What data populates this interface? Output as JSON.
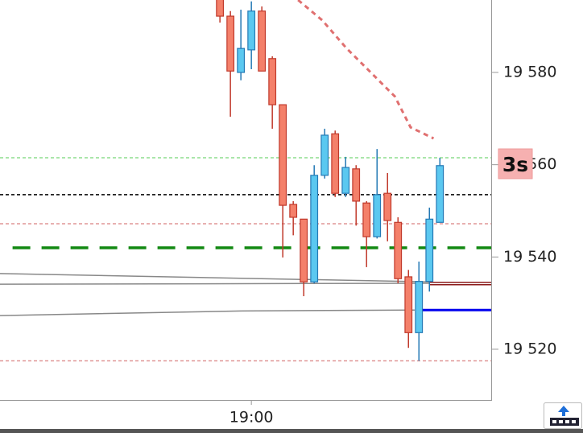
{
  "chart_data": {
    "type": "candlestick",
    "open": [
      19596,
      19592.2,
      19580,
      19584.9,
      19593.3,
      19583.0,
      19573.0,
      19551.4,
      19548.2,
      19534.6,
      19557.7,
      19566.7,
      19553.8,
      19559.1,
      19551.7,
      19544.4,
      19553.8,
      19547.5,
      19535.7,
      19523.6,
      19534.7,
      19547.5
    ],
    "high": [
      19597,
      19593.3,
      19593.6,
      19595.4,
      19594.3,
      19583.5,
      19573.0,
      19552.1,
      19548.2,
      19559.9,
      19567.8,
      19567.4,
      19561.7,
      19559.9,
      19552.1,
      19563.4,
      19558.2,
      19548.6,
      19537.2,
      19539.0,
      19550.7,
      19561.5
    ],
    "low": [
      19590.8,
      19570.4,
      19578.3,
      19580.7,
      19580.3,
      19567.8,
      19539.9,
      19544.7,
      19531.5,
      19534.3,
      19557.0,
      19553.0,
      19553.0,
      19546.8,
      19537.8,
      19544.0,
      19543.4,
      19534.3,
      19520.3,
      19517.5,
      19532.5,
      19547.5
    ],
    "close": [
      19592.2,
      19580.3,
      19585.2,
      19593.3,
      19580.3,
      19573.0,
      19551.2,
      19548.6,
      19534.6,
      19557.7,
      19566.4,
      19553.8,
      19559.4,
      19552.1,
      19544.4,
      19553.5,
      19547.9,
      19535.3,
      19523.6,
      19534.7,
      19548.2,
      19559.8
    ],
    "up_color": "#5bc8f0",
    "up_edge": "#2479b5",
    "down_color": "#f4806a",
    "down_edge": "#c0392b",
    "xlim": [
      -21,
      25.9
    ],
    "xticks": [
      {
        "value": 3,
        "label": "19:00"
      }
    ],
    "ylim": [
      19509,
      19595.7
    ],
    "yticks": [
      {
        "value": 19580,
        "label": "19 580"
      },
      {
        "value": 19560,
        "label": "19 560"
      },
      {
        "value": 19540,
        "label": "19 540"
      },
      {
        "value": 19520,
        "label": "19 520"
      }
    ],
    "overlays": [
      {
        "x": [
          -21,
          20
        ],
        "values": [
          19536.4,
          19534.6
        ],
        "color": "#888888",
        "width": 1.5
      },
      {
        "x": [
          -21,
          20
        ],
        "values": [
          19534.1,
          19534.3
        ],
        "color": "#888888",
        "width": 1.5
      },
      {
        "x": [
          -21,
          2,
          18.6
        ],
        "values": [
          19527.3,
          19528.3,
          19528.5
        ],
        "color": "#888888",
        "width": 1.5
      },
      {
        "x": [
          7.46,
          9.77,
          12.1,
          14.4,
          16.7,
          18.2,
          20.4
        ],
        "values": [
          19595.7,
          19591.3,
          19585.2,
          19580,
          19574.8,
          19568.1,
          19565.7
        ],
        "color": "#e07070",
        "width": 3,
        "dash": "6 5"
      }
    ],
    "levels": [
      {
        "value": 19561.5,
        "from": -21,
        "color": "#55cc55",
        "width": 1,
        "dash": "4 3"
      },
      {
        "value": 19553.5,
        "from": -21,
        "color": "#000000",
        "width": 1.5,
        "dash": "4 3"
      },
      {
        "value": 19547.2,
        "from": -21,
        "color": "#d06060",
        "width": 1,
        "dash": "4 3"
      },
      {
        "value": 19542,
        "from": -19.8,
        "color": "#118811",
        "width": 3.5,
        "dash": "22 14"
      },
      {
        "value": 19517.5,
        "from": -21,
        "color": "#d06060",
        "width": 1,
        "dash": "4 3"
      },
      {
        "value": 19534.5,
        "from": 20,
        "color": "#8b1a1a",
        "width": 1.5,
        "dash": ""
      },
      {
        "value": 19534.0,
        "from": 20,
        "color": "#8b1a1a",
        "width": 1.5,
        "dash": ""
      },
      {
        "value": 19528.5,
        "from": 18.8,
        "color": "#0000ee",
        "width": 3,
        "dash": ""
      }
    ],
    "timer_label": "3s"
  }
}
